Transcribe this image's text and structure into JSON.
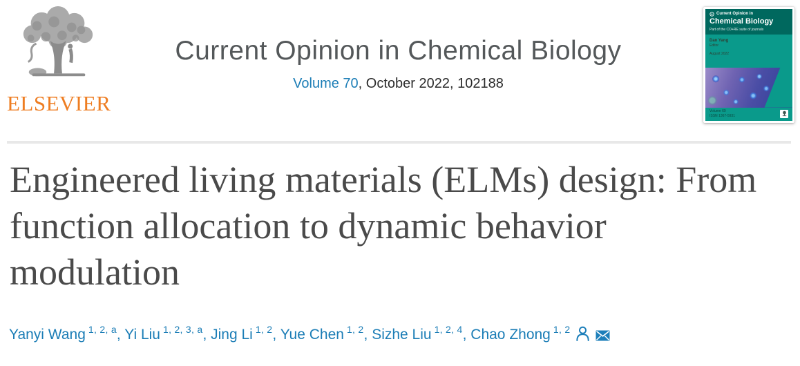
{
  "header": {
    "elsevier_wordmark": "ELSEVIER",
    "journal_title": "Current Opinion in Chemical Biology",
    "volume_link": "Volume 70",
    "issue_info": ", October 2022, 102188"
  },
  "cover": {
    "journal_prefix": "Current Opinion in",
    "journal_name": "Chemical Biology",
    "subtitle": "Part of the CO+RE suite of journals",
    "editor_name": "Dan Yang",
    "editor_role": "Editor",
    "issue_date": "August 2022",
    "volume": "Volume 69",
    "issn": "ISSN 1367-5931"
  },
  "article": {
    "title": "Engineered living materials (ELMs) design: From function allocation to dynamic behavior modulation"
  },
  "authors": [
    {
      "name": "Yanyi Wang",
      "sup": "1, 2, a"
    },
    {
      "name": "Yi Liu",
      "sup": "1, 2, 3, a"
    },
    {
      "name": "Jing Li",
      "sup": "1, 2"
    },
    {
      "name": "Yue Chen",
      "sup": "1, 2"
    },
    {
      "name": "Sizhe Liu",
      "sup": "1, 2, 4"
    },
    {
      "name": "Chao Zhong",
      "sup": "1, 2"
    }
  ],
  "icons": {
    "corresponding_author": "person-icon",
    "email": "envelope-icon",
    "logo": "elsevier-tree-icon",
    "cover_badge": "elsevier-mini-tree-icon",
    "cover_emblem": "circle-emblem-icon"
  },
  "colors": {
    "link_blue": "#1b7db6",
    "elsevier_orange": "#ee7d22",
    "article_title_gray": "#4a4a4a",
    "journal_heading_gray": "#54585a",
    "cover_teal_dark": "#00685e",
    "cover_teal": "#0a9a8b",
    "divider_gray": "#e8e8e8"
  }
}
